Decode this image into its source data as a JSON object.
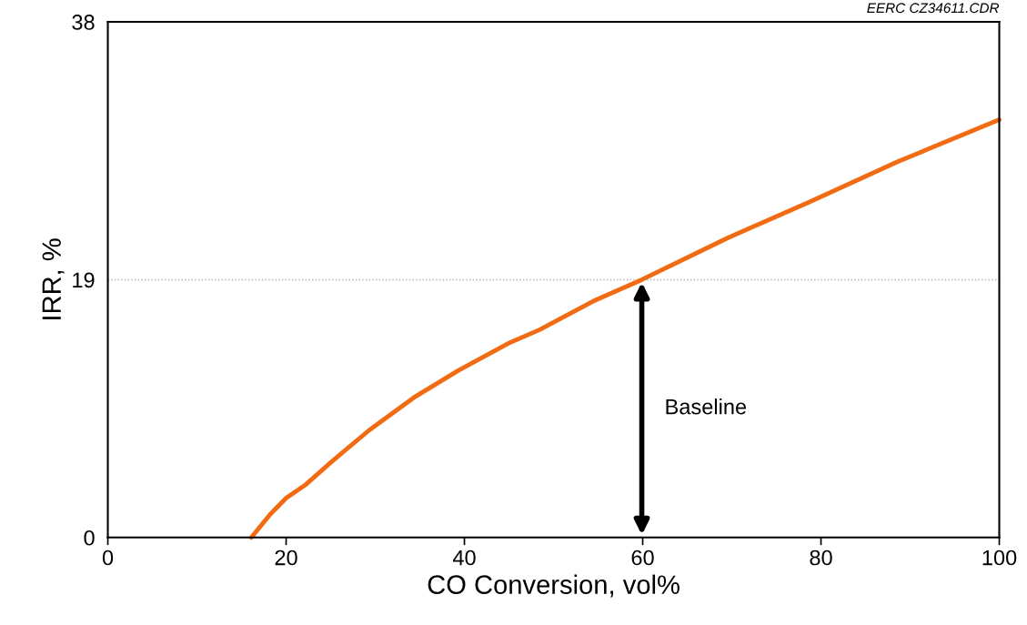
{
  "chart_data": {
    "type": "line",
    "xlabel": "CO Conversion, vol%",
    "ylabel": "IRR, %",
    "x": [
      16.1,
      18.2,
      20.0,
      22.2,
      25.3,
      29.3,
      34.3,
      39.3,
      44.9,
      48.4,
      54.4,
      59.9,
      69.6,
      78.6,
      88.6,
      100
    ],
    "series": [
      {
        "color": "#f26b12",
        "values": [
          0,
          1.7,
          2.9,
          3.9,
          5.7,
          7.9,
          10.3,
          12.3,
          14.3,
          15.3,
          17.4,
          19.0,
          22.1,
          24.7,
          27.7,
          30.8
        ]
      }
    ],
    "xlim": [
      0,
      100
    ],
    "ylim": [
      0,
      38
    ],
    "xticks": [
      0,
      20,
      40,
      60,
      80,
      100
    ],
    "yticks": [
      0,
      19,
      38
    ],
    "ref_lines": [
      {
        "axis": "y",
        "value": 19,
        "color": "#b0b0b0",
        "line_style": "dotted"
      }
    ],
    "annotations": [
      "Baseline",
      "EERC CZ34611.CDR"
    ],
    "grid": false,
    "legend": false,
    "marker": "none",
    "line_style": "solid"
  }
}
